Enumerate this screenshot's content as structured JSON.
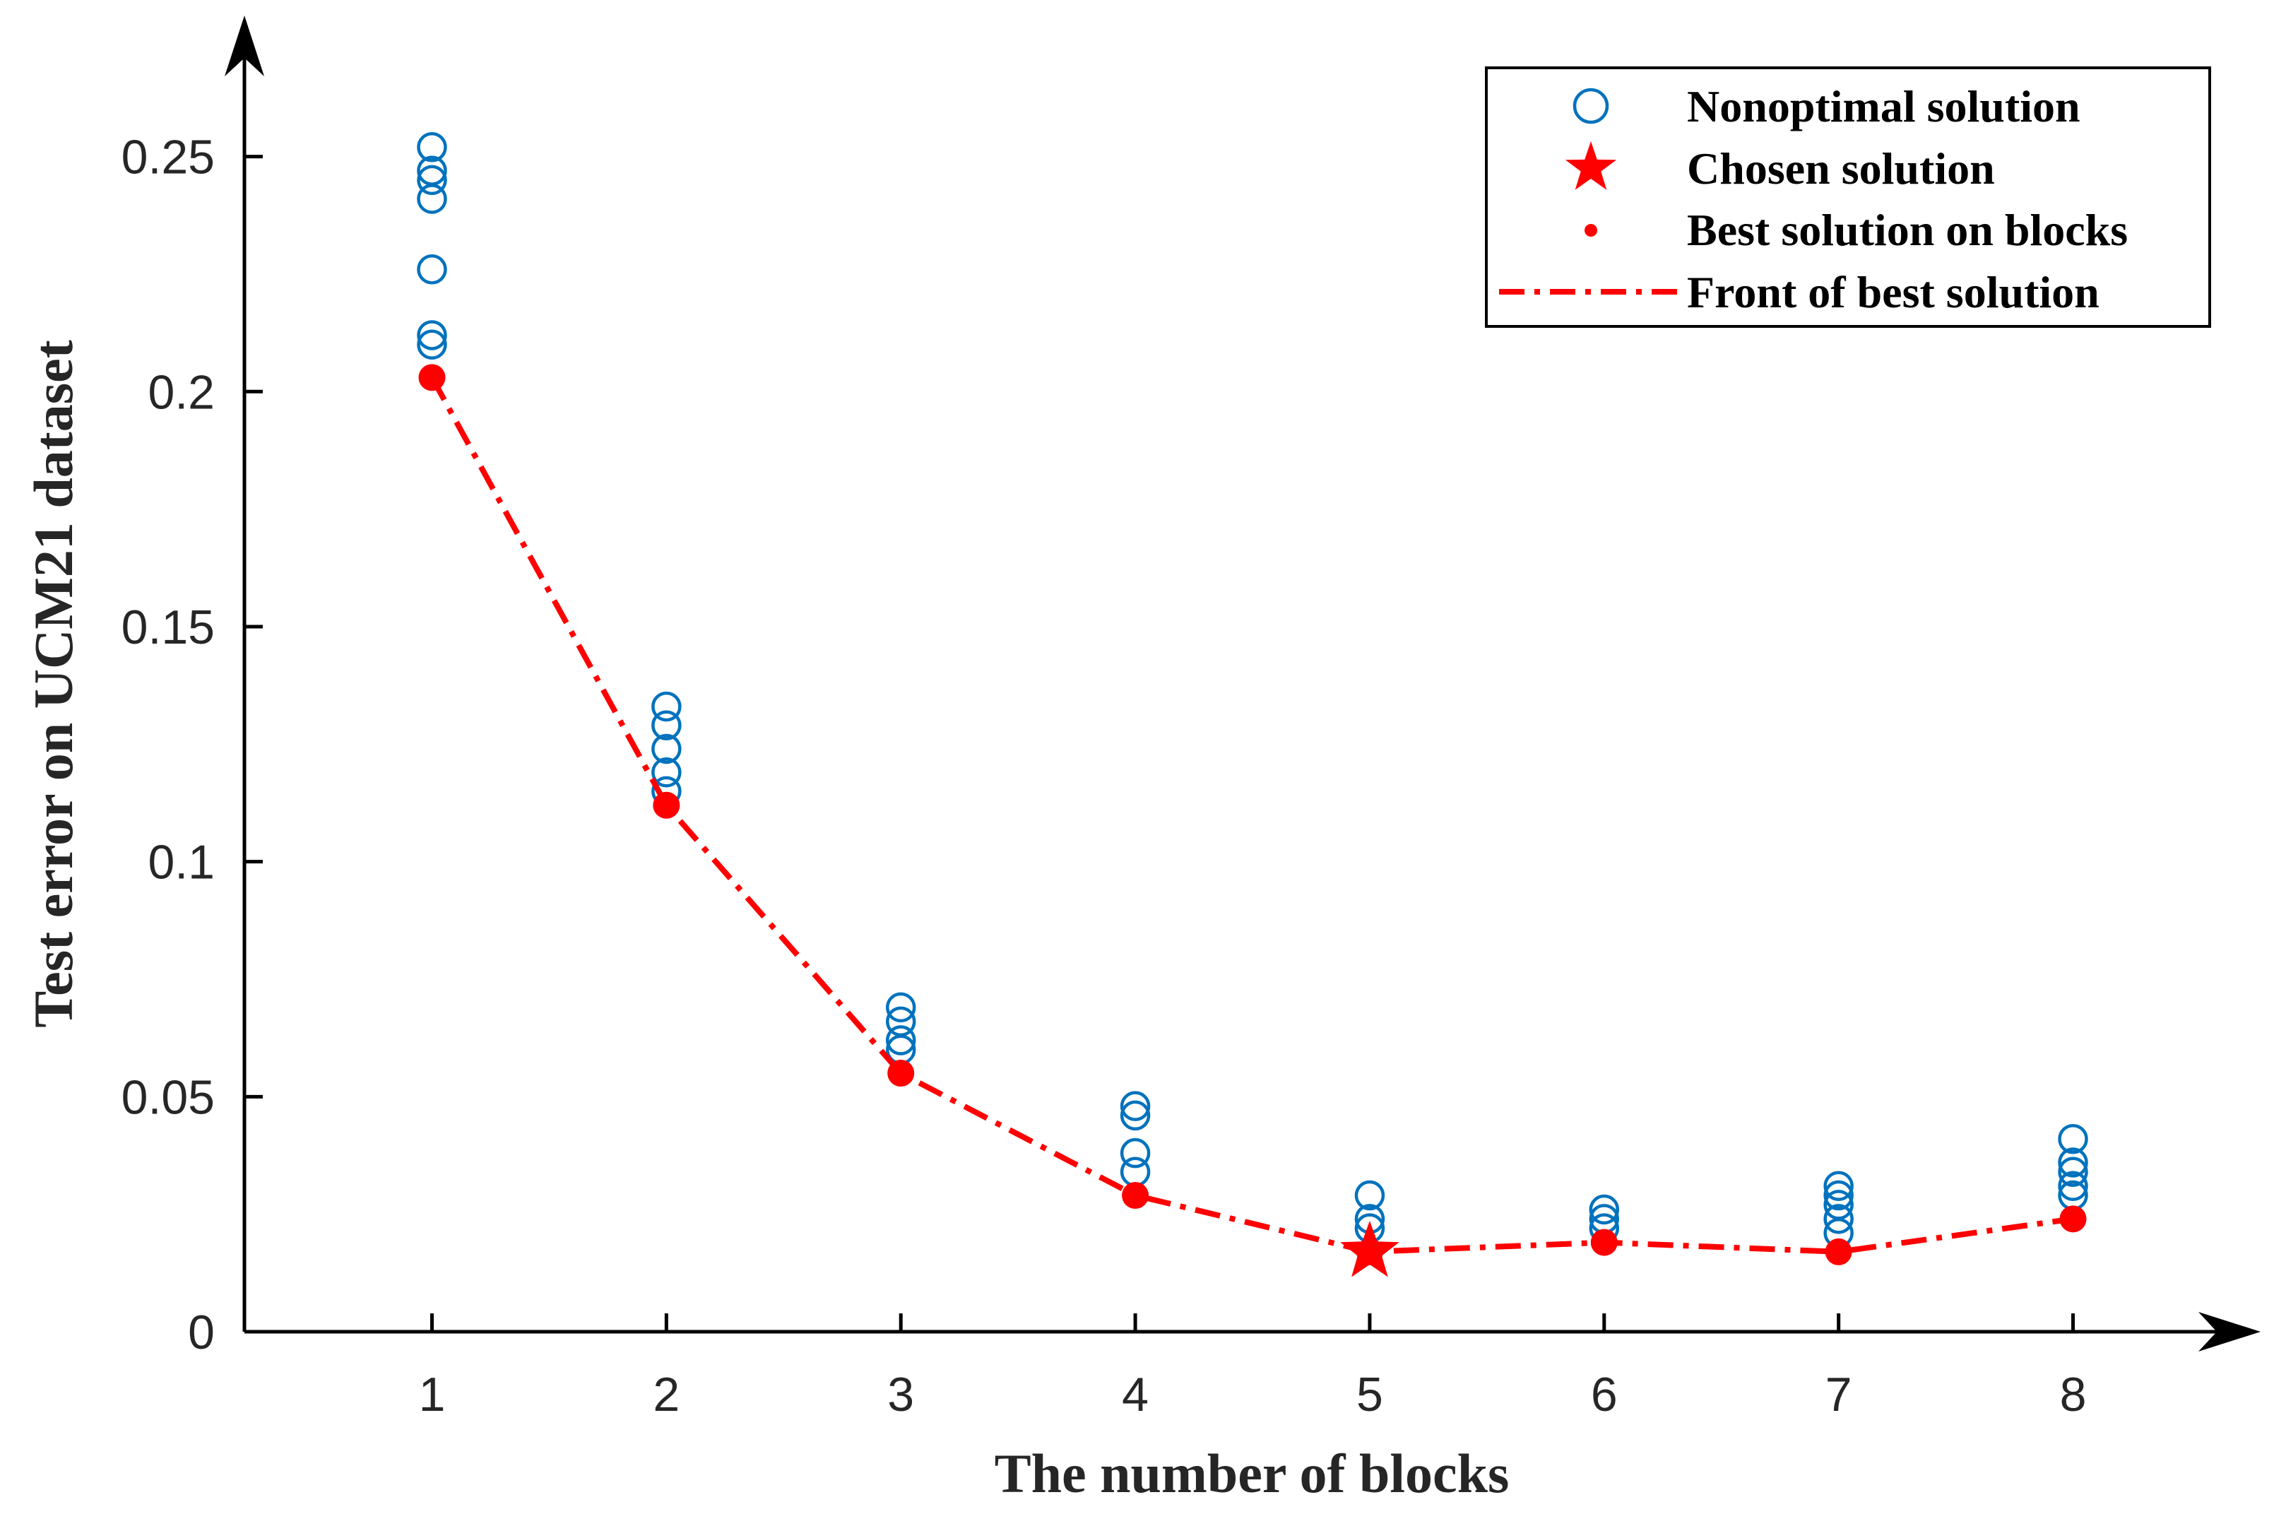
{
  "chart_data": {
    "type": "scatter",
    "title": "",
    "xlabel": "The number of blocks",
    "ylabel": "Test error on UCM21 dataset",
    "xlim": [
      0.2,
      8.8
    ],
    "ylim": [
      0,
      0.28
    ],
    "x_ticks": [
      1,
      2,
      3,
      4,
      5,
      6,
      7,
      8
    ],
    "x_tick_labels": [
      "1",
      "2",
      "3",
      "4",
      "5",
      "6",
      "7",
      "8"
    ],
    "y_ticks": [
      0,
      0.05,
      0.1,
      0.15,
      0.2,
      0.25
    ],
    "y_tick_labels": [
      "0",
      "0.05",
      "0.1",
      "0.15",
      "0.2",
      "0.25"
    ],
    "grid": false,
    "legend_position": "top-right",
    "legend": [
      "Nonoptimal solution",
      "Chosen solution",
      "Best solution on blocks",
      "Front of best solution"
    ],
    "series": [
      {
        "name": "Nonoptimal solution",
        "marker": "open-circle",
        "color": "#0072BD",
        "points": [
          [
            1,
            0.252
          ],
          [
            1,
            0.247
          ],
          [
            1,
            0.245
          ],
          [
            1,
            0.241
          ],
          [
            1,
            0.226
          ],
          [
            1,
            0.212
          ],
          [
            1,
            0.21
          ],
          [
            2,
            0.133
          ],
          [
            2,
            0.129
          ],
          [
            2,
            0.124
          ],
          [
            2,
            0.119
          ],
          [
            2,
            0.115
          ],
          [
            3,
            0.069
          ],
          [
            3,
            0.066
          ],
          [
            3,
            0.062
          ],
          [
            3,
            0.06
          ],
          [
            4,
            0.048
          ],
          [
            4,
            0.046
          ],
          [
            4,
            0.038
          ],
          [
            4,
            0.034
          ],
          [
            5,
            0.029
          ],
          [
            5,
            0.024
          ],
          [
            5,
            0.022
          ],
          [
            6,
            0.026
          ],
          [
            6,
            0.024
          ],
          [
            6,
            0.022
          ],
          [
            7,
            0.031
          ],
          [
            7,
            0.029
          ],
          [
            7,
            0.027
          ],
          [
            7,
            0.024
          ],
          [
            7,
            0.021
          ],
          [
            8,
            0.041
          ],
          [
            8,
            0.036
          ],
          [
            8,
            0.034
          ],
          [
            8,
            0.031
          ],
          [
            8,
            0.029
          ]
        ]
      },
      {
        "name": "Best solution on blocks",
        "marker": "filled-dot",
        "color": "#FF0000",
        "x": [
          1,
          2,
          3,
          4,
          5,
          6,
          7,
          8
        ],
        "y": [
          0.203,
          0.112,
          0.055,
          0.029,
          0.017,
          0.019,
          0.017,
          0.024
        ]
      },
      {
        "name": "Front of best solution",
        "line": "dash-dot",
        "color": "#FF0000",
        "x": [
          1,
          2,
          3,
          4,
          5,
          6,
          7,
          8
        ],
        "y": [
          0.203,
          0.112,
          0.055,
          0.029,
          0.017,
          0.019,
          0.017,
          0.024
        ]
      },
      {
        "name": "Chosen solution",
        "marker": "pentagram",
        "color": "#FF0000",
        "x": [
          5
        ],
        "y": [
          0.017
        ]
      }
    ]
  }
}
